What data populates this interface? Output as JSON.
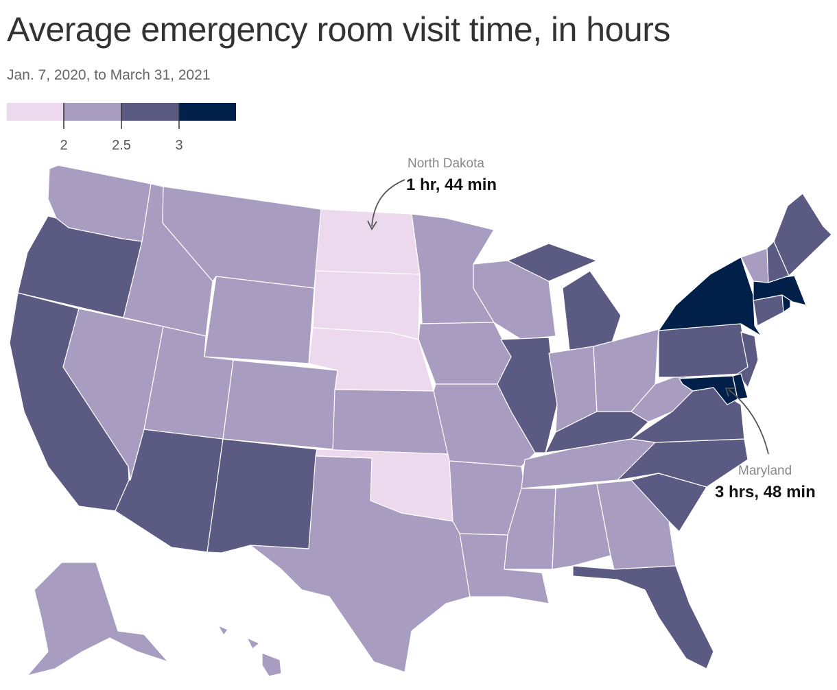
{
  "title": "Average emergency room visit time, in hours",
  "subtitle": "Jan. 7, 2020, to March 31, 2021",
  "legend": {
    "colors": [
      "#ecd9ee",
      "#a99cc1",
      "#5a5a83",
      "#00204a"
    ],
    "ticks": [
      "2",
      "2.5",
      "3"
    ],
    "thresholds": [
      2,
      2.5,
      3
    ]
  },
  "annotations": {
    "north_dakota": {
      "name": "North Dakota",
      "value": "1 hr, 44 min"
    },
    "maryland": {
      "name": "Maryland",
      "value": "3 hrs, 48 min"
    }
  },
  "chart_data": {
    "type": "choropleth",
    "title": "Average emergency room visit time, in hours",
    "subtitle": "Jan. 7, 2020, to March 31, 2021",
    "bins": [
      {
        "range": "< 2",
        "color": "#ecd9ee"
      },
      {
        "range": "2 – 2.5",
        "color": "#a99cc1"
      },
      {
        "range": "2.5 – 3",
        "color": "#5a5a83"
      },
      {
        "range": "≥ 3",
        "color": "#00204a"
      }
    ],
    "states": [
      {
        "state": "North Dakota",
        "bin": 0,
        "value": 1.73
      },
      {
        "state": "South Dakota",
        "bin": 0
      },
      {
        "state": "Nebraska",
        "bin": 0
      },
      {
        "state": "Oklahoma",
        "bin": 0
      },
      {
        "state": "Washington",
        "bin": 1
      },
      {
        "state": "Idaho",
        "bin": 1
      },
      {
        "state": "Montana",
        "bin": 1
      },
      {
        "state": "Wyoming",
        "bin": 1
      },
      {
        "state": "Nevada",
        "bin": 1
      },
      {
        "state": "Utah",
        "bin": 1
      },
      {
        "state": "Colorado",
        "bin": 1
      },
      {
        "state": "Kansas",
        "bin": 1
      },
      {
        "state": "Texas",
        "bin": 1
      },
      {
        "state": "Minnesota",
        "bin": 1
      },
      {
        "state": "Iowa",
        "bin": 1
      },
      {
        "state": "Missouri",
        "bin": 1
      },
      {
        "state": "Arkansas",
        "bin": 1
      },
      {
        "state": "Louisiana",
        "bin": 1
      },
      {
        "state": "Wisconsin",
        "bin": 1
      },
      {
        "state": "Indiana",
        "bin": 1
      },
      {
        "state": "Ohio",
        "bin": 1
      },
      {
        "state": "West Virginia",
        "bin": 1
      },
      {
        "state": "Tennessee",
        "bin": 1
      },
      {
        "state": "Mississippi",
        "bin": 1
      },
      {
        "state": "Alabama",
        "bin": 1
      },
      {
        "state": "Georgia",
        "bin": 1
      },
      {
        "state": "Vermont",
        "bin": 1
      },
      {
        "state": "Alaska",
        "bin": 1
      },
      {
        "state": "Hawaii",
        "bin": 1
      },
      {
        "state": "Oregon",
        "bin": 2
      },
      {
        "state": "California",
        "bin": 2
      },
      {
        "state": "Arizona",
        "bin": 2
      },
      {
        "state": "New Mexico",
        "bin": 2
      },
      {
        "state": "Illinois",
        "bin": 2
      },
      {
        "state": "Michigan",
        "bin": 2
      },
      {
        "state": "Kentucky",
        "bin": 2
      },
      {
        "state": "Virginia",
        "bin": 2
      },
      {
        "state": "North Carolina",
        "bin": 2
      },
      {
        "state": "South Carolina",
        "bin": 2
      },
      {
        "state": "Florida",
        "bin": 2
      },
      {
        "state": "Pennsylvania",
        "bin": 2
      },
      {
        "state": "New Jersey",
        "bin": 2
      },
      {
        "state": "Connecticut",
        "bin": 2
      },
      {
        "state": "New Hampshire",
        "bin": 2
      },
      {
        "state": "Maine",
        "bin": 2
      },
      {
        "state": "New York",
        "bin": 3
      },
      {
        "state": "Massachusetts",
        "bin": 3
      },
      {
        "state": "Rhode Island",
        "bin": 3
      },
      {
        "state": "Delaware",
        "bin": 3
      },
      {
        "state": "Maryland",
        "bin": 3,
        "value": 3.8
      }
    ]
  }
}
